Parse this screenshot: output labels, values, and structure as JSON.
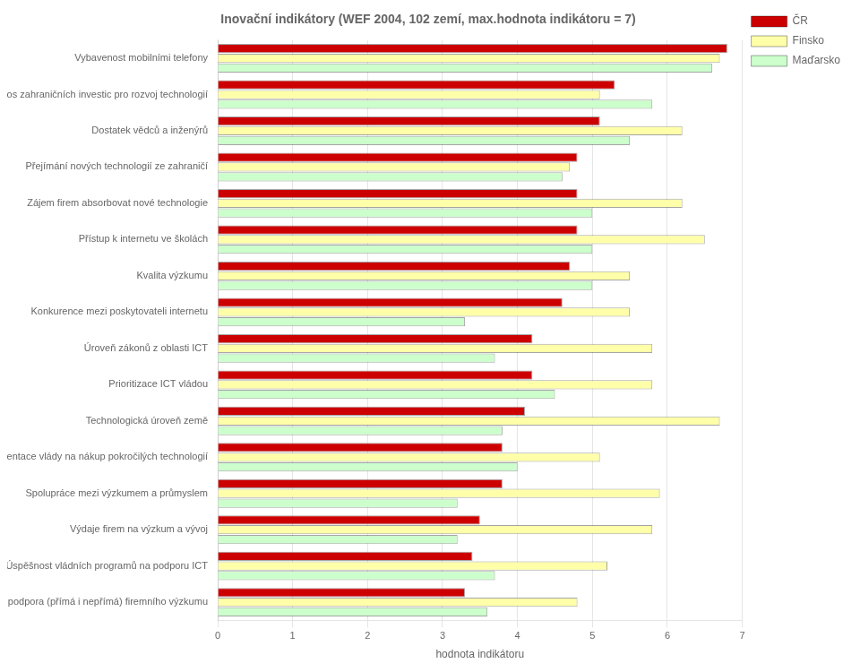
{
  "chart_data": {
    "type": "bar",
    "orientation": "horizontal",
    "title": "Inovační indikátory (WEF 2004, 102 zemí, max.hodnota indikátoru = 7)",
    "xlabel": "hodnota indikátoru",
    "categories": [
      "Vybavenost mobilními telefony",
      "Přínos zahraničních investic pro rozvoj technologií",
      "Dostatek vědců a inženýrů",
      "Přejímání nových technologií ze zahraničí",
      "Zájem firem absorbovat nové technologie",
      "Přístup k internetu ve školách",
      "Kvalita výzkumu",
      "Konkurence mezi poskytovateli internetu",
      "Úroveň zákonů z oblasti ICT",
      "Prioritizace ICT vládou",
      "Technologická úroveň země",
      "Orientace vlády na nákup pokročilých technologií",
      "Spolupráce mezi výzkumem a průmyslem",
      "Výdaje firem na výzkum a vývoj",
      "Úspěšnost vládních programů na podporu ICT",
      "Státní podpora (přímá i nepřímá) firemního výzkumu"
    ],
    "series": [
      {
        "name": "ČR",
        "color": "#cc0000",
        "values": [
          6.8,
          5.3,
          5.1,
          4.8,
          4.8,
          4.8,
          4.7,
          4.6,
          4.2,
          4.2,
          4.1,
          3.8,
          3.8,
          3.5,
          3.4,
          3.3
        ]
      },
      {
        "name": "Finsko",
        "color": "#ffffaa",
        "values": [
          6.7,
          5.1,
          6.2,
          4.7,
          6.2,
          6.5,
          5.5,
          5.5,
          5.8,
          5.8,
          6.7,
          5.1,
          5.9,
          5.8,
          5.2,
          4.8
        ]
      },
      {
        "name": "Maďarsko",
        "color": "#ccffcc",
        "values": [
          6.6,
          5.8,
          5.5,
          4.6,
          5.0,
          5.0,
          5.0,
          3.3,
          3.7,
          4.5,
          3.8,
          4.0,
          3.2,
          3.2,
          3.7,
          3.6
        ]
      }
    ],
    "xlim": [
      0,
      7
    ],
    "xticks": [
      0,
      1,
      2,
      3,
      4,
      5,
      6,
      7
    ],
    "grid": true,
    "legend": "upper right"
  }
}
